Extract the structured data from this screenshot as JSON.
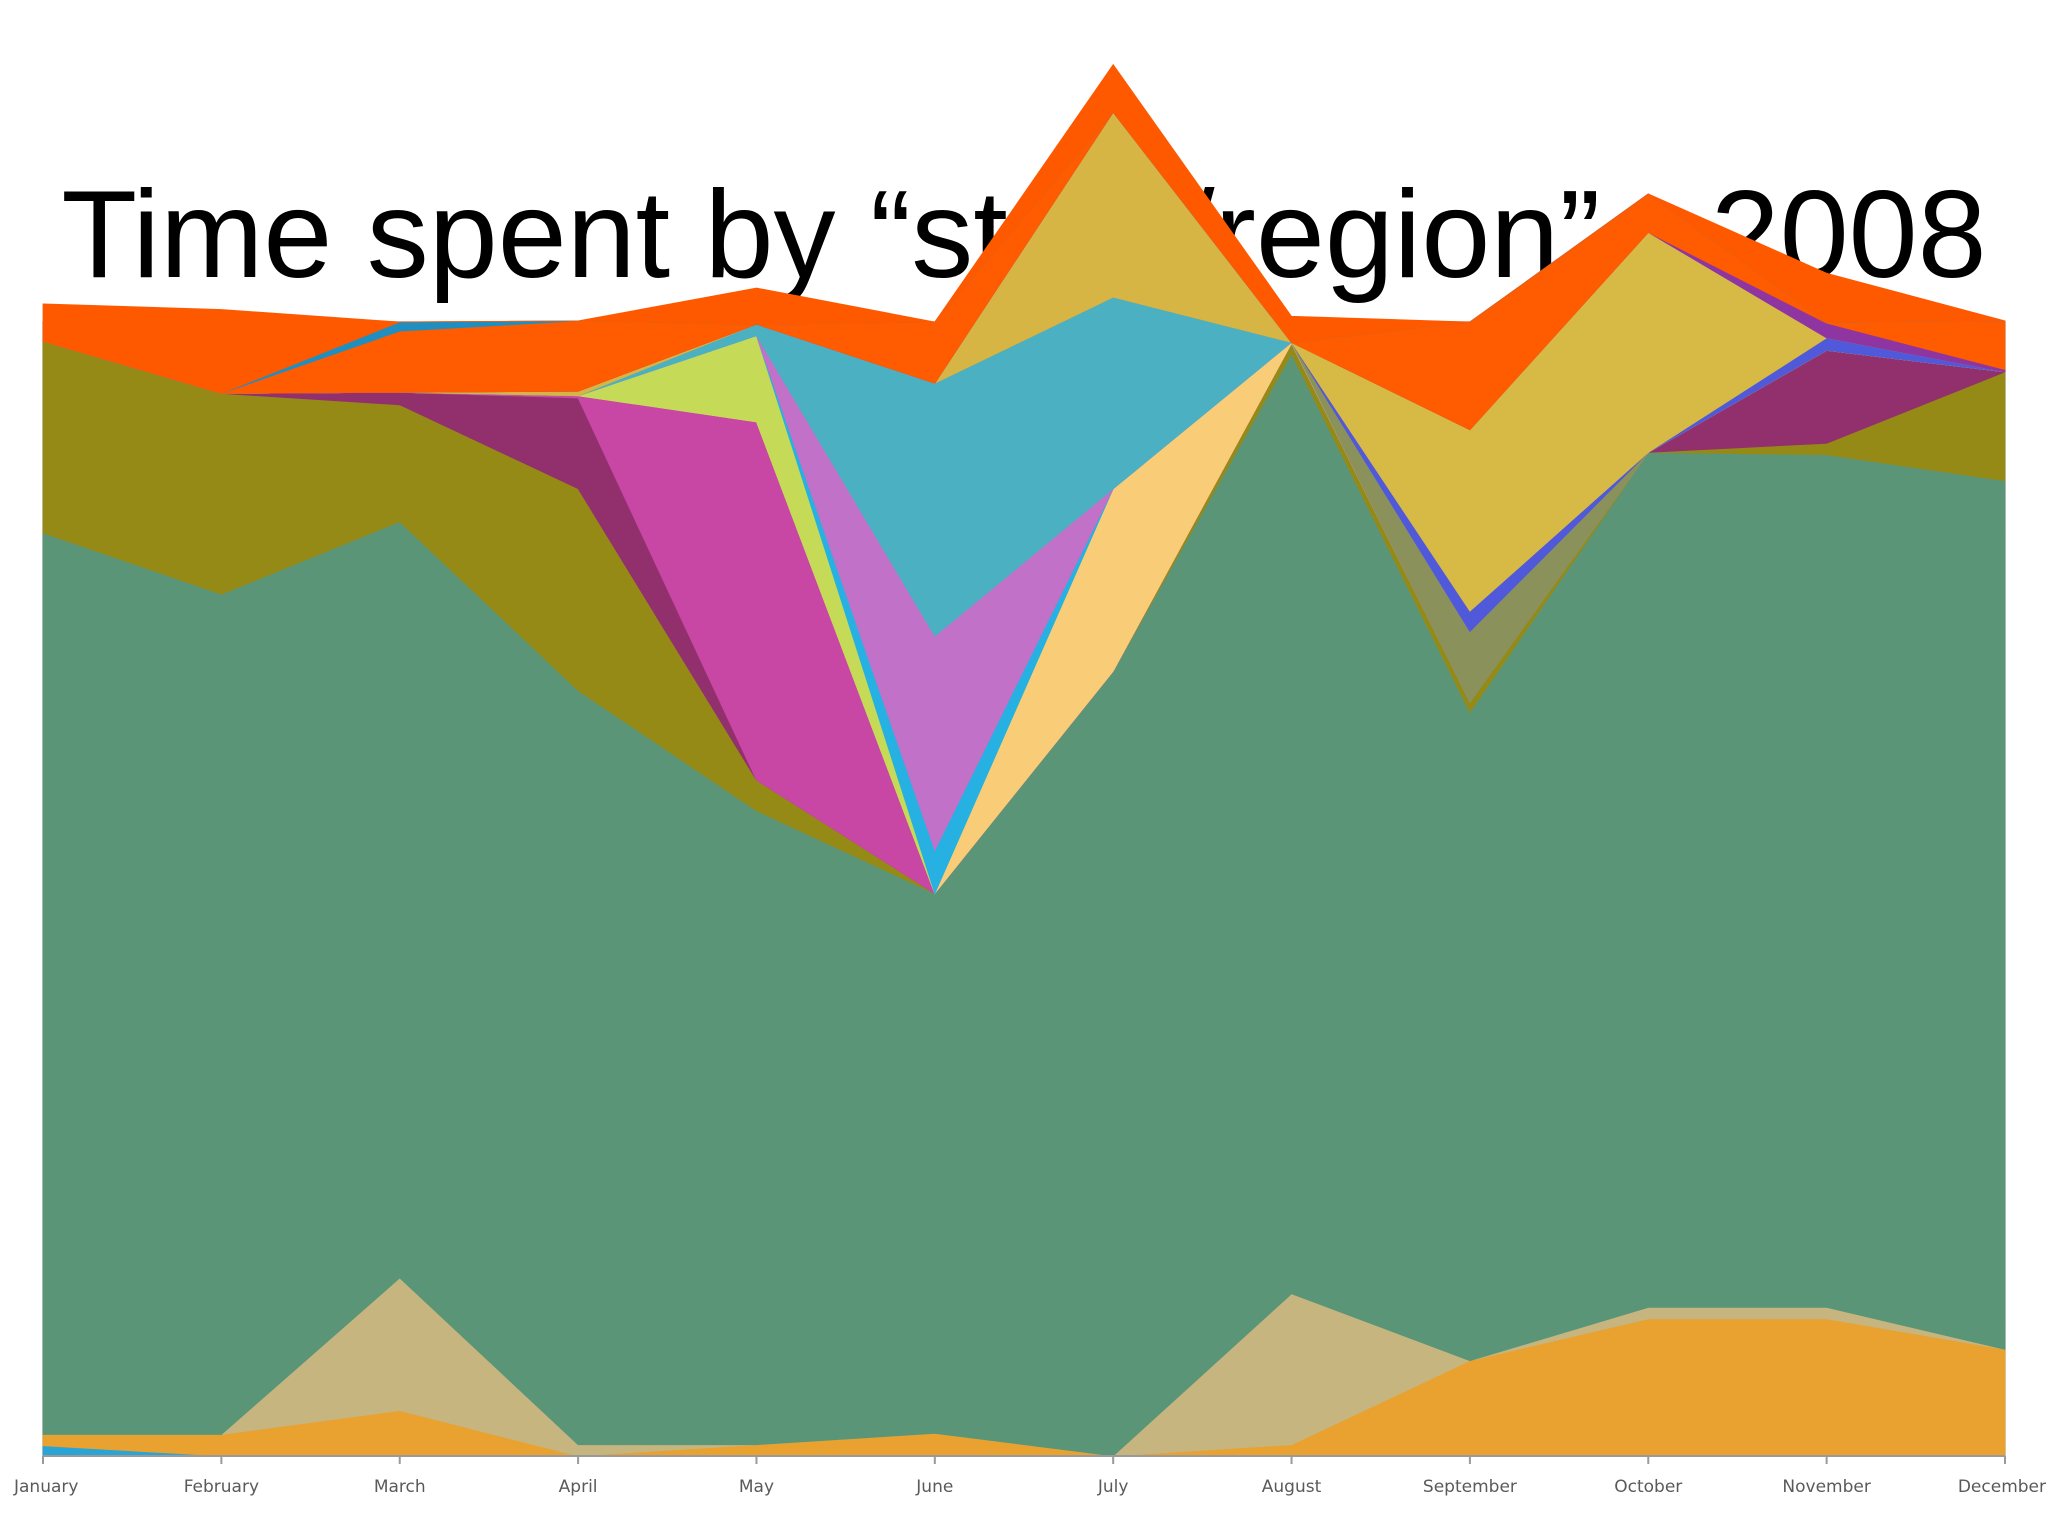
{
  "title": "Time spent by “state/region” - 2008",
  "chart_data": {
    "type": "area",
    "stacked": true,
    "normalized": true,
    "title": "Time spent by “state/region” - 2008",
    "xlabel": "",
    "ylabel": "",
    "ylim": [
      0,
      100
    ],
    "grid": false,
    "legend": "none",
    "categories": [
      "January",
      "February",
      "March",
      "April",
      "May",
      "June",
      "July",
      "August",
      "September",
      "October",
      "November",
      "December"
    ],
    "series": [
      {
        "color": "#29a4d4",
        "values": [
          0.9,
          0,
          0,
          0,
          0,
          0,
          0,
          0,
          0,
          0,
          0,
          0
        ]
      },
      {
        "color": "#e9a12f",
        "values": [
          1.0,
          1.9,
          4.0,
          0,
          1.0,
          2.0,
          0,
          1.0,
          8.4,
          12.1,
          12.1,
          9.4
        ]
      },
      {
        "color": "#c6b57e",
        "values": [
          0,
          0,
          11.7,
          1.0,
          0,
          0,
          0,
          13.3,
          0,
          1.0,
          1.0,
          0
        ]
      },
      {
        "color": "#5a9578",
        "values": [
          79.5,
          74.1,
          66.7,
          66.5,
          55.9,
          47.6,
          69.2,
          82.9,
          57.2,
          75.4,
          75.2,
          76.6
        ]
      },
      {
        "color": "#968a17",
        "values": [
          16.9,
          17.7,
          10.3,
          17.8,
          2.7,
          0,
          0,
          0.9,
          0.9,
          0,
          1.0,
          9.6
        ]
      },
      {
        "color": "#92306e",
        "values": [
          0,
          0,
          1.1,
          8.0,
          0,
          0,
          0,
          0,
          0,
          0,
          8.2,
          0
        ]
      },
      {
        "color": "#c846a4",
        "values": [
          0,
          0,
          0,
          0.2,
          31.6,
          0,
          0,
          0,
          0,
          0,
          0,
          0
        ]
      },
      {
        "color": "#f9cd78",
        "values": [
          0,
          0,
          0,
          0,
          0,
          0,
          16.1,
          0.1,
          0,
          0,
          0,
          0
        ]
      },
      {
        "color": "#c5db57",
        "values": [
          0,
          0,
          0,
          0,
          7.6,
          0,
          0,
          0,
          0,
          0,
          0,
          0
        ]
      },
      {
        "color": "#26b1e2",
        "values": [
          0,
          0,
          0,
          0,
          0,
          3.8,
          0,
          0,
          0,
          0,
          0,
          0
        ]
      },
      {
        "color": "#c171c7",
        "values": [
          0,
          0,
          0,
          0,
          0,
          18.9,
          0,
          0,
          0,
          0,
          0,
          0
        ]
      },
      {
        "color": "#4cb0c3",
        "values": [
          0,
          0,
          0,
          0,
          1.0,
          22.3,
          16.9,
          0,
          0,
          0,
          0,
          0
        ]
      },
      {
        "color": "#8a915a",
        "values": [
          0,
          0,
          0,
          0,
          0,
          0,
          0,
          0,
          6.2,
          0,
          0,
          0
        ]
      },
      {
        "color": "#d7b545",
        "values": [
          0,
          0,
          0,
          0.4,
          0,
          0,
          16.3,
          0,
          0,
          0,
          0,
          0
        ]
      },
      {
        "color": "#5059d9",
        "values": [
          0,
          0,
          0,
          0,
          0,
          0,
          0,
          0,
          1.8,
          0,
          1.1,
          0
        ]
      },
      {
        "color": "#d7b945",
        "values": [
          0,
          0,
          0,
          0,
          0,
          0,
          0,
          0,
          16.0,
          19.4,
          0,
          0
        ]
      },
      {
        "color": "#8f35a1",
        "values": [
          0,
          0,
          0,
          0,
          0,
          0,
          0,
          0,
          0,
          0,
          1.3,
          0.2
        ]
      },
      {
        "color": "#ff5b00",
        "values": [
          0,
          0,
          5.4,
          6.2,
          0,
          5.4,
          0,
          0,
          9.5,
          3.4,
          0.1,
          4.3
        ]
      },
      {
        "color": "#1e8fc0",
        "values": [
          0,
          0,
          0.8,
          0,
          0,
          0,
          0,
          0,
          0,
          0,
          0,
          0
        ]
      },
      {
        "color": "#ff5900",
        "values": [
          3.3,
          7.4,
          0,
          0,
          3.2,
          0,
          4.2,
          2.3,
          0,
          0,
          4.3,
          0
        ]
      }
    ]
  }
}
